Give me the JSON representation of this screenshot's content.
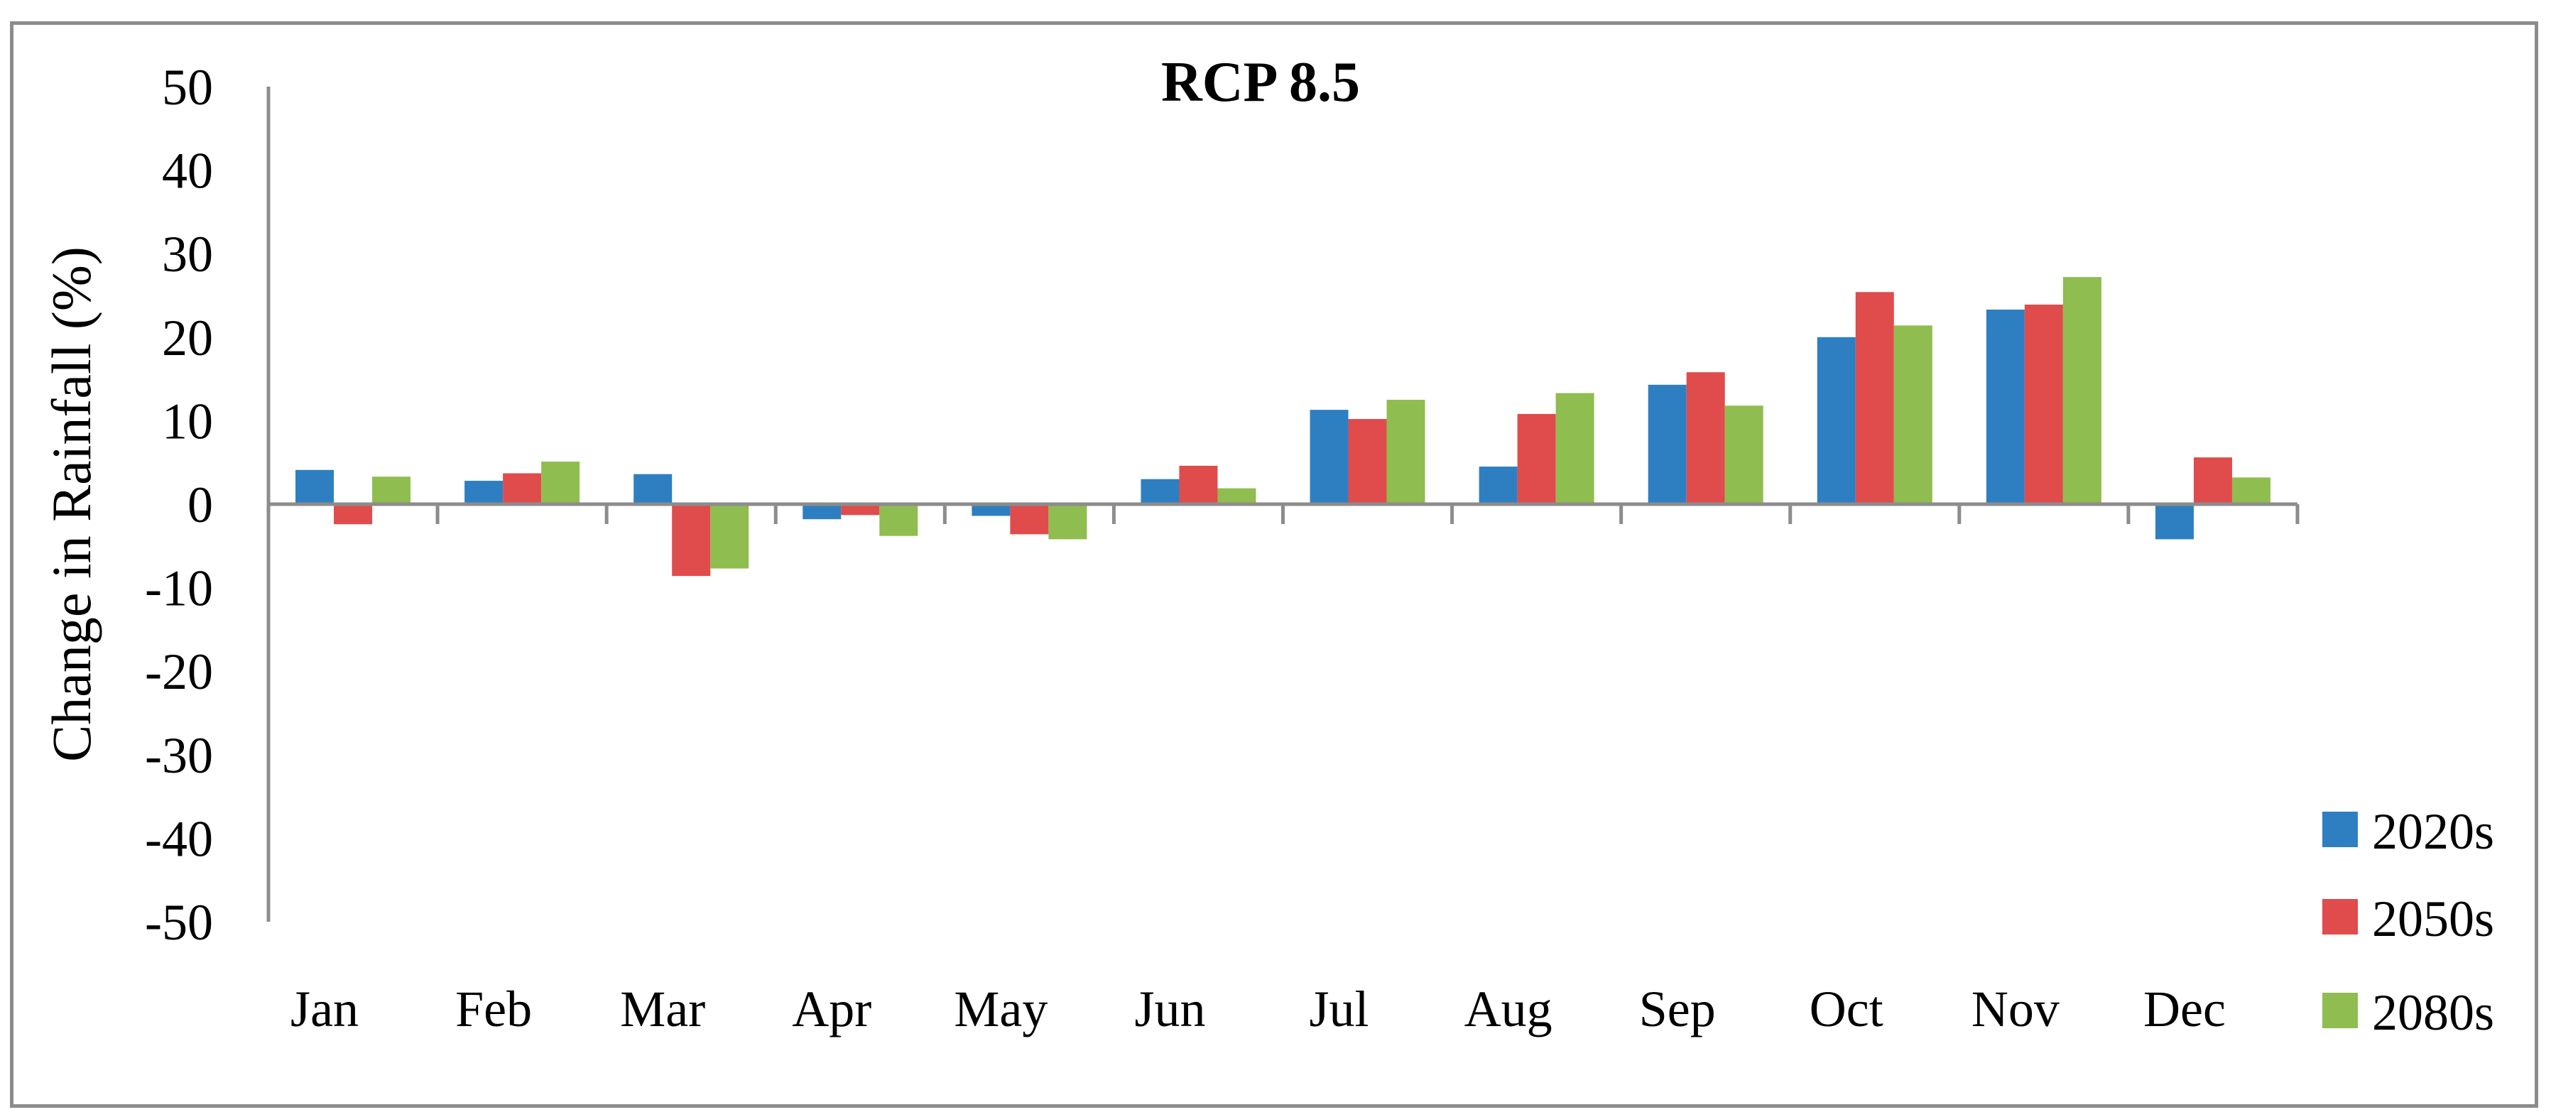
{
  "chart_data": {
    "type": "bar",
    "title": "RCP 8.5",
    "xlabel": "",
    "ylabel": "Change in Rainfall (%)",
    "ylim": [
      -50,
      50
    ],
    "yticks": [
      "50",
      "40",
      "30",
      "20",
      "10",
      "0",
      "-10",
      "-20",
      "-30",
      "-40",
      "-50"
    ],
    "categories": [
      "Jan",
      "Feb",
      "Mar",
      "Apr",
      "May",
      "Jun",
      "Jul",
      "Aug",
      "Sep",
      "Oct",
      "Nov",
      "Dec"
    ],
    "series": [
      {
        "name": "2020s",
        "color": "#2e7fc1",
        "values": [
          4.1,
          2.8,
          3.6,
          -1.8,
          -1.4,
          3.0,
          11.3,
          4.5,
          14.3,
          20.0,
          23.3,
          -4.2
        ]
      },
      {
        "name": "2050s",
        "color": "#e04b4b",
        "values": [
          -2.4,
          3.7,
          -8.6,
          -1.3,
          -3.6,
          4.6,
          10.2,
          10.8,
          15.8,
          25.4,
          23.9,
          5.6
        ]
      },
      {
        "name": "2080s",
        "color": "#8fbd4f",
        "values": [
          3.3,
          5.1,
          -7.7,
          -3.8,
          -4.2,
          1.9,
          12.5,
          13.3,
          11.8,
          21.4,
          27.2,
          3.2
        ]
      }
    ],
    "grid": false,
    "legend_position": "bottom-right"
  }
}
